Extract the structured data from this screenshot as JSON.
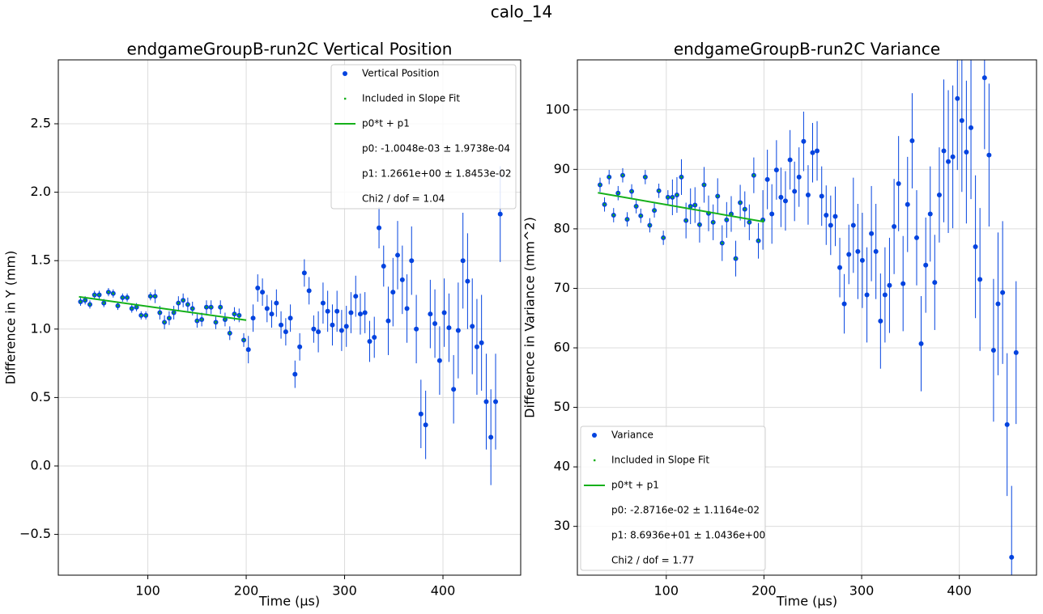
{
  "title": "calo_14",
  "chart_data": [
    {
      "type": "errorbar",
      "title": "endgameGroupB-run2C Vertical Position",
      "xlabel": "Time (µs)",
      "ylabel": "Difference in Y (mm)",
      "xlim": [
        9,
        479
      ],
      "ylim": [
        -0.798,
        2.967
      ],
      "xticks": [
        100,
        200,
        300,
        400
      ],
      "yticks": [
        {
          "value": -0.5,
          "label": "−0.5"
        },
        {
          "value": 0,
          "label": "0.0"
        },
        0.5,
        {
          "value": 1,
          "label": "1.0"
        },
        1.5,
        {
          "value": 2,
          "label": "2.0"
        },
        2.5
      ],
      "grid": true,
      "legend": "upper right",
      "x": [
        31.6,
        36.3,
        41.1,
        45.8,
        50.6,
        55.3,
        60.0,
        64.8,
        69.5,
        74.3,
        79.0,
        83.7,
        88.5,
        93.2,
        98.0,
        102.7,
        107.4,
        112.2,
        116.9,
        121.7,
        126.4,
        131.1,
        135.9,
        140.6,
        145.4,
        150.1,
        154.8,
        159.6,
        164.3,
        169.1,
        173.8,
        178.5,
        183.3,
        188.0,
        192.8,
        197.5,
        202.2,
        207.0,
        211.7,
        216.5,
        221.2,
        225.9,
        230.7,
        235.4,
        240.2,
        244.9,
        249.6,
        254.4,
        259.1,
        263.9,
        268.6,
        273.3,
        278.1,
        282.8,
        287.6,
        292.3,
        297.0,
        301.8,
        306.5,
        311.3,
        316.0,
        320.7,
        325.5,
        330.2,
        335.0,
        339.7,
        344.4,
        349.2,
        353.9,
        358.7,
        363.4,
        368.1,
        372.9,
        377.6,
        382.4,
        387.1,
        391.8,
        396.6,
        401.3,
        406.1,
        410.8,
        415.5,
        420.3,
        425.0,
        429.8,
        434.5,
        439.2,
        444.0,
        448.7,
        453.5,
        458.2
      ],
      "series": [
        {
          "name": "Vertical Position",
          "color": "#0343df",
          "values": [
            1.2,
            1.21,
            1.18,
            1.25,
            1.25,
            1.19,
            1.27,
            1.26,
            1.17,
            1.23,
            1.23,
            1.15,
            1.16,
            1.1,
            1.1,
            1.24,
            1.24,
            1.12,
            1.05,
            1.08,
            1.12,
            1.19,
            1.21,
            1.18,
            1.15,
            1.06,
            1.07,
            1.16,
            1.16,
            1.05,
            1.16,
            1.07,
            0.97,
            1.11,
            1.1,
            0.92,
            0.85,
            1.08,
            1.3,
            1.27,
            1.15,
            1.11,
            1.19,
            1.03,
            0.98,
            1.08,
            0.67,
            0.87,
            1.41,
            1.28,
            1.0,
            0.98,
            1.19,
            1.13,
            1.03,
            1.13,
            0.99,
            1.02,
            1.12,
            1.24,
            1.11,
            1.12,
            0.91,
            0.94,
            1.74,
            1.46,
            1.06,
            1.27,
            1.54,
            1.36,
            1.15,
            1.5,
            1.0,
            0.38,
            0.3,
            1.11,
            1.04,
            0.77,
            1.12,
            1.01,
            0.56,
            0.99,
            1.5,
            1.35,
            1.02,
            0.87,
            0.9,
            0.47,
            0.21,
            0.47,
            1.84
          ],
          "errors": [
            0.03,
            0.03,
            0.03,
            0.03,
            0.03,
            0.03,
            0.03,
            0.03,
            0.03,
            0.03,
            0.03,
            0.03,
            0.03,
            0.03,
            0.03,
            0.03,
            0.05,
            0.05,
            0.05,
            0.05,
            0.05,
            0.05,
            0.05,
            0.05,
            0.05,
            0.05,
            0.05,
            0.05,
            0.05,
            0.05,
            0.05,
            0.05,
            0.05,
            0.05,
            0.05,
            0.05,
            0.1,
            0.1,
            0.1,
            0.1,
            0.1,
            0.1,
            0.1,
            0.1,
            0.1,
            0.1,
            0.1,
            0.1,
            0.1,
            0.1,
            0.1,
            0.15,
            0.15,
            0.15,
            0.15,
            0.15,
            0.15,
            0.15,
            0.15,
            0.15,
            0.15,
            0.15,
            0.15,
            0.15,
            0.15,
            0.15,
            0.25,
            0.25,
            0.25,
            0.25,
            0.25,
            0.25,
            0.25,
            0.25,
            0.25,
            0.25,
            0.25,
            0.25,
            0.25,
            0.25,
            0.25,
            0.35,
            0.35,
            0.35,
            0.35,
            0.35,
            0.35,
            0.35,
            0.35,
            0.35,
            0.35
          ]
        }
      ],
      "fit_points": {
        "name": "Included in Slope Fit",
        "color": "#15b01a"
      },
      "fit": {
        "name": "p0*t + p1",
        "color": "#15b01a",
        "p0": -0.0010048,
        "p1": 1.2661,
        "xlim": [
          30,
          200
        ]
      },
      "legend_notes": [
        "p0: -1.0048e-03 ± 1.9738e-04",
        "p1: 1.2661e+00 ± 1.8453e-02",
        "Chi2 / dof = 1.04"
      ]
    },
    {
      "type": "errorbar",
      "title": "endgameGroupB-run2C Variance",
      "xlabel": "Time (µs)",
      "ylabel": "Difference in Variance (mm^2)",
      "xlim": [
        9,
        479
      ],
      "ylim": [
        21.8,
        108.4
      ],
      "xticks": [
        100,
        200,
        300,
        400
      ],
      "yticks": [
        30,
        40,
        50,
        60,
        70,
        80,
        90,
        100
      ],
      "grid": true,
      "legend": "lower left",
      "x": [
        32.2,
        36.8,
        41.5,
        46.1,
        50.7,
        55.4,
        60.0,
        64.6,
        69.2,
        73.9,
        78.5,
        83.1,
        87.8,
        92.4,
        97.0,
        101.7,
        106.3,
        110.9,
        115.5,
        120.2,
        124.8,
        129.4,
        134.1,
        138.7,
        143.3,
        148.0,
        152.6,
        157.2,
        161.8,
        166.5,
        171.1,
        175.7,
        180.4,
        185.0,
        189.6,
        194.3,
        198.9,
        203.5,
        208.1,
        212.8,
        217.4,
        222.0,
        226.7,
        231.3,
        235.9,
        240.6,
        245.2,
        249.8,
        254.4,
        259.1,
        263.7,
        268.3,
        273.0,
        277.6,
        282.2,
        286.9,
        291.5,
        296.1,
        300.7,
        305.4,
        310.0,
        314.6,
        319.3,
        323.9,
        328.5,
        333.2,
        337.8,
        342.4,
        347.0,
        351.7,
        356.3,
        360.9,
        365.6,
        370.2,
        374.8,
        379.5,
        384.1,
        388.7,
        393.3,
        398.0,
        402.6,
        407.2,
        411.9,
        416.5,
        421.1,
        425.8,
        430.4,
        435.0,
        439.6,
        444.3,
        448.9,
        453.5,
        458.1
      ],
      "series": [
        {
          "name": "Variance",
          "color": "#0343df",
          "values": [
            87.4,
            84.1,
            88.7,
            82.3,
            86.0,
            89.0,
            81.6,
            86.3,
            83.8,
            82.2,
            88.7,
            80.6,
            83.1,
            86.4,
            78.5,
            85.3,
            85.3,
            85.7,
            88.7,
            81.4,
            83.8,
            84.0,
            80.7,
            87.4,
            82.6,
            81.1,
            85.5,
            77.6,
            81.5,
            82.5,
            75.0,
            84.4,
            83.3,
            81.1,
            89.0,
            78.0,
            81.5,
            88.3,
            82.5,
            89.9,
            85.3,
            84.7,
            91.6,
            86.3,
            88.7,
            94.7,
            85.7,
            92.8,
            93.1,
            85.5,
            82.3,
            80.6,
            82.1,
            73.5,
            67.4,
            75.7,
            80.6,
            76.2,
            74.7,
            68.9,
            79.2,
            76.2,
            64.5,
            68.9,
            70.5,
            80.4,
            87.6,
            70.8,
            84.1,
            94.8,
            78.5,
            60.7,
            73.9,
            82.5,
            71.0,
            85.7,
            93.1,
            91.3,
            92.1,
            101.9,
            98.2,
            92.9,
            97.0,
            77.0,
            71.5,
            105.4,
            92.4,
            59.6,
            67.4,
            69.3,
            47.1,
            24.8,
            59.2
          ],
          "errors": [
            1.2,
            1.2,
            1.2,
            1.2,
            1.2,
            1.2,
            1.2,
            1.2,
            1.2,
            1.2,
            1.2,
            1.2,
            1.2,
            1.2,
            1.2,
            1.2,
            3,
            3,
            3,
            3,
            3,
            3,
            3,
            3,
            3,
            3,
            3,
            3,
            3,
            3,
            3,
            3,
            3,
            3,
            3,
            3,
            5,
            5,
            5,
            5,
            5,
            5,
            5,
            5,
            5,
            5,
            5,
            5,
            5,
            5,
            5,
            5,
            5,
            5,
            5,
            5,
            8,
            8,
            8,
            8,
            8,
            8,
            8,
            8,
            8,
            8,
            8,
            8,
            8,
            8,
            8,
            8,
            8,
            8,
            8,
            8,
            12,
            12,
            12,
            12,
            12,
            12,
            12,
            12,
            12,
            12,
            12,
            12,
            12,
            12,
            12,
            12,
            12
          ]
        }
      ],
      "fit_points": {
        "name": "Included in Slope Fit",
        "color": "#15b01a"
      },
      "fit": {
        "name": "p0*t + p1",
        "color": "#15b01a",
        "p0": -0.028716,
        "p1": 86.936,
        "xlim": [
          30,
          200
        ]
      },
      "legend_notes": [
        "p0: -2.8716e-02 ± 1.1164e-02",
        "p1: 8.6936e+01 ± 1.0436e+00",
        "Chi2 / dof = 1.77"
      ]
    }
  ]
}
